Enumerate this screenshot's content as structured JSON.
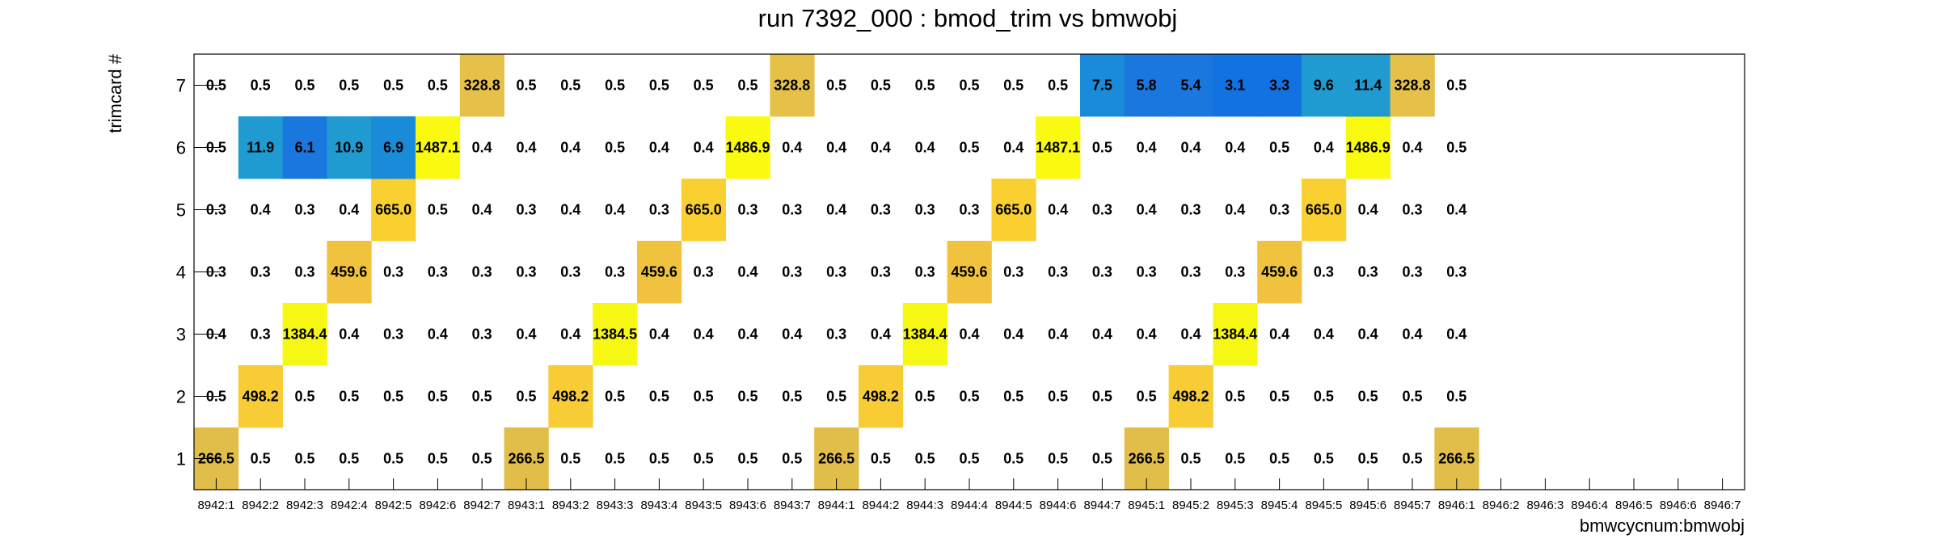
{
  "chart_data": {
    "type": "heatmap",
    "title": "run 7392_000 : bmod_trim vs bmwobj",
    "xlabel": "bmwcycnum:bmwobj",
    "ylabel": "trimcard #",
    "x_categories": [
      "8942:1",
      "8942:2",
      "8942:3",
      "8942:4",
      "8942:5",
      "8942:6",
      "8942:7",
      "8943:1",
      "8943:2",
      "8943:3",
      "8943:4",
      "8943:5",
      "8943:6",
      "8943:7",
      "8944:1",
      "8944:2",
      "8944:3",
      "8944:4",
      "8944:5",
      "8944:6",
      "8944:7",
      "8945:1",
      "8945:2",
      "8945:3",
      "8945:4",
      "8945:5",
      "8945:6",
      "8945:7",
      "8946:1",
      "8946:2",
      "8946:3",
      "8946:4",
      "8946:5",
      "8946:6",
      "8946:7"
    ],
    "y_categories": [
      "1",
      "2",
      "3",
      "4",
      "5",
      "6",
      "7"
    ],
    "rows": [
      [
        266.5,
        0.5,
        0.5,
        0.5,
        0.5,
        0.5,
        0.5,
        266.5,
        0.5,
        0.5,
        0.5,
        0.5,
        0.5,
        0.5,
        266.5,
        0.5,
        0.5,
        0.5,
        0.5,
        0.5,
        0.5,
        266.5,
        0.5,
        0.5,
        0.5,
        0.5,
        0.5,
        0.5,
        266.5,
        null,
        null,
        null,
        null,
        null,
        null
      ],
      [
        0.5,
        498.2,
        0.5,
        0.5,
        0.5,
        0.5,
        0.5,
        0.5,
        498.2,
        0.5,
        0.5,
        0.5,
        0.5,
        0.5,
        0.5,
        498.2,
        0.5,
        0.5,
        0.5,
        0.5,
        0.5,
        0.5,
        498.2,
        0.5,
        0.5,
        0.5,
        0.5,
        0.5,
        0.5,
        null,
        null,
        null,
        null,
        null,
        null
      ],
      [
        0.4,
        0.3,
        1384.4,
        0.4,
        0.3,
        0.4,
        0.3,
        0.4,
        0.4,
        1384.5,
        0.4,
        0.4,
        0.4,
        0.4,
        0.3,
        0.4,
        1384.4,
        0.4,
        0.4,
        0.4,
        0.4,
        0.4,
        0.4,
        1384.4,
        0.4,
        0.4,
        0.4,
        0.4,
        0.4,
        null,
        null,
        null,
        null,
        null,
        null
      ],
      [
        0.3,
        0.3,
        0.3,
        459.6,
        0.3,
        0.3,
        0.3,
        0.3,
        0.3,
        0.3,
        459.6,
        0.3,
        0.4,
        0.3,
        0.3,
        0.3,
        0.3,
        459.6,
        0.3,
        0.3,
        0.3,
        0.3,
        0.3,
        0.3,
        459.6,
        0.3,
        0.3,
        0.3,
        0.3,
        null,
        null,
        null,
        null,
        null,
        null
      ],
      [
        0.3,
        0.4,
        0.3,
        0.4,
        665.0,
        0.5,
        0.4,
        0.3,
        0.4,
        0.4,
        0.3,
        665.0,
        0.3,
        0.3,
        0.4,
        0.3,
        0.3,
        0.3,
        665.0,
        0.4,
        0.3,
        0.4,
        0.3,
        0.4,
        0.3,
        665.0,
        0.4,
        0.3,
        0.4,
        null,
        null,
        null,
        null,
        null,
        null
      ],
      [
        0.5,
        11.9,
        6.1,
        10.9,
        6.9,
        1487.1,
        0.4,
        0.4,
        0.4,
        0.5,
        0.4,
        0.4,
        1486.9,
        0.4,
        0.4,
        0.4,
        0.4,
        0.5,
        0.4,
        1487.1,
        0.5,
        0.4,
        0.4,
        0.4,
        0.5,
        0.4,
        1486.9,
        0.4,
        0.5,
        null,
        null,
        null,
        null,
        null,
        null
      ],
      [
        0.5,
        0.5,
        0.5,
        0.5,
        0.5,
        0.5,
        328.8,
        0.5,
        0.5,
        0.5,
        0.5,
        0.5,
        0.5,
        328.8,
        0.5,
        0.5,
        0.5,
        0.5,
        0.5,
        0.5,
        7.5,
        5.8,
        5.4,
        3.1,
        3.3,
        9.6,
        11.4,
        328.8,
        0.5,
        null,
        null,
        null,
        null,
        null,
        null
      ]
    ],
    "cell_labels": [
      [
        "266.5",
        "0.5",
        "0.5",
        "0.5",
        "0.5",
        "0.5",
        "0.5",
        "266.5",
        "0.5",
        "0.5",
        "0.5",
        "0.5",
        "0.5",
        "0.5",
        "266.5",
        "0.5",
        "0.5",
        "0.5",
        "0.5",
        "0.5",
        "0.5",
        "266.5",
        "0.5",
        "0.5",
        "0.5",
        "0.5",
        "0.5",
        "0.5",
        "266.5",
        null,
        null,
        null,
        null,
        null,
        null
      ],
      [
        "0.5",
        "498.2",
        "0.5",
        "0.5",
        "0.5",
        "0.5",
        "0.5",
        "0.5",
        "498.2",
        "0.5",
        "0.5",
        "0.5",
        "0.5",
        "0.5",
        "0.5",
        "498.2",
        "0.5",
        "0.5",
        "0.5",
        "0.5",
        "0.5",
        "0.5",
        "498.2",
        "0.5",
        "0.5",
        "0.5",
        "0.5",
        "0.5",
        "0.5",
        null,
        null,
        null,
        null,
        null,
        null
      ],
      [
        "0.4",
        "0.3",
        "1384.4",
        "0.4",
        "0.3",
        "0.4",
        "0.3",
        "0.4",
        "0.4",
        "1384.5",
        "0.4",
        "0.4",
        "0.4",
        "0.4",
        "0.3",
        "0.4",
        "1384.4",
        "0.4",
        "0.4",
        "0.4",
        "0.4",
        "0.4",
        "0.4",
        "1384.4",
        "0.4",
        "0.4",
        "0.4",
        "0.4",
        "0.4",
        null,
        null,
        null,
        null,
        null,
        null
      ],
      [
        "0.3",
        "0.3",
        "0.3",
        "459.6",
        "0.3",
        "0.3",
        "0.3",
        "0.3",
        "0.3",
        "0.3",
        "459.6",
        "0.3",
        "0.4",
        "0.3",
        "0.3",
        "0.3",
        "0.3",
        "459.6",
        "0.3",
        "0.3",
        "0.3",
        "0.3",
        "0.3",
        "0.3",
        "459.6",
        "0.3",
        "0.3",
        "0.3",
        "0.3",
        null,
        null,
        null,
        null,
        null,
        null
      ],
      [
        "0.3",
        "0.4",
        "0.3",
        "0.4",
        "665.0",
        "0.5",
        "0.4",
        "0.3",
        "0.4",
        "0.4",
        "0.3",
        "665.0",
        "0.3",
        "0.3",
        "0.4",
        "0.3",
        "0.3",
        "0.3",
        "665.0",
        "0.4",
        "0.3",
        "0.4",
        "0.3",
        "0.4",
        "0.3",
        "665.0",
        "0.4",
        "0.3",
        "0.4",
        null,
        null,
        null,
        null,
        null,
        null
      ],
      [
        "0.5",
        "11.9",
        "6.1",
        "10.9",
        "6.9",
        "1487.1",
        "0.4",
        "0.4",
        "0.4",
        "0.5",
        "0.4",
        "0.4",
        "1486.9",
        "0.4",
        "0.4",
        "0.4",
        "0.4",
        "0.5",
        "0.4",
        "1487.1",
        "0.5",
        "0.4",
        "0.4",
        "0.4",
        "0.5",
        "0.4",
        "1486.9",
        "0.4",
        "0.5",
        null,
        null,
        null,
        null,
        null,
        null
      ],
      [
        "0.5",
        "0.5",
        "0.5",
        "0.5",
        "0.5",
        "0.5",
        "328.8",
        "0.5",
        "0.5",
        "0.5",
        "0.5",
        "0.5",
        "0.5",
        "328.8",
        "0.5",
        "0.5",
        "0.5",
        "0.5",
        "0.5",
        "0.5",
        "7.5",
        "5.8",
        "5.4",
        "3.1",
        "3.3",
        "9.6",
        "11.4",
        "328.8",
        "0.5",
        null,
        null,
        null,
        null,
        null,
        null
      ]
    ],
    "colors": {
      "val_266": "#e1bd4a",
      "val_498": "#f7cc35",
      "val_1384": "#f7f714",
      "val_459": "#f0c23d",
      "val_665": "#f9d02f",
      "val_1487": "#f9fa0f",
      "val_328": "#e6c14a",
      "blue_light": "#1f9bd2",
      "blue_mid": "#198bd8",
      "blue_dark": "#1a77de",
      "blue_deep": "#1372e2"
    },
    "grid": false,
    "legend": "none"
  }
}
